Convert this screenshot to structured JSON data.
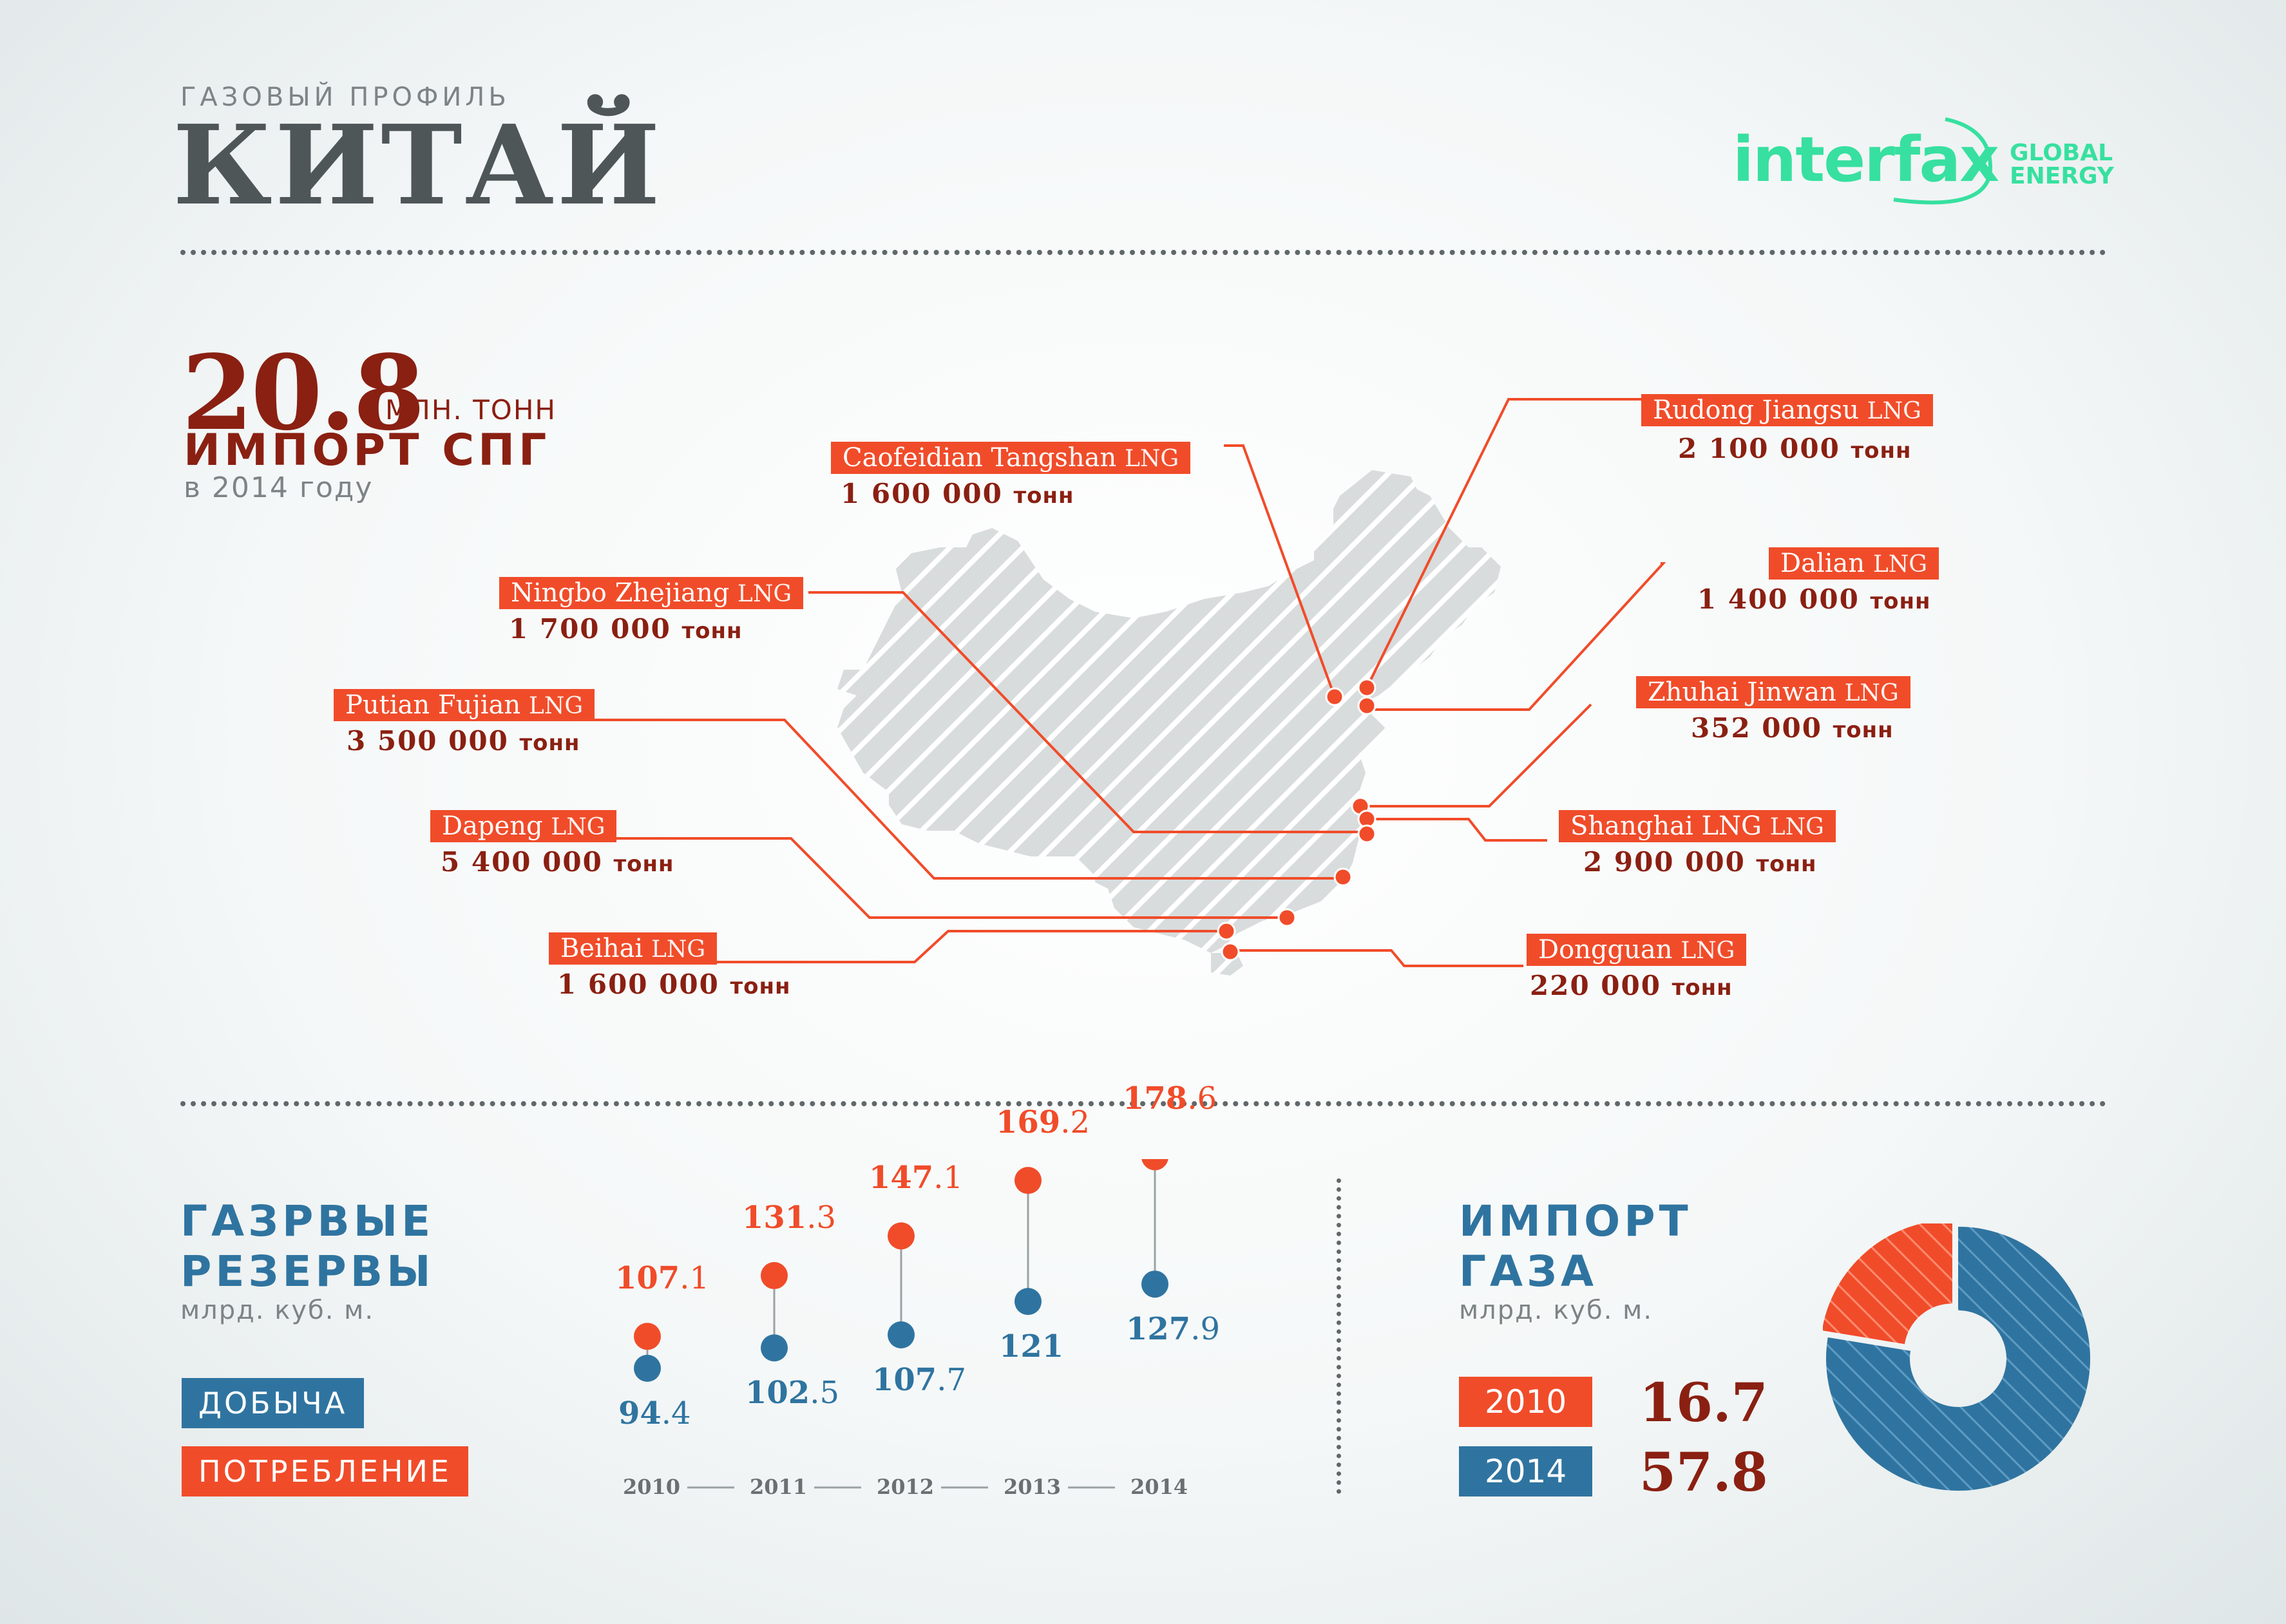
{
  "header": {
    "subtitle": "ГАЗОВЫЙ ПРОФИЛЬ",
    "title": "КИТАЙ",
    "logo_main": "interfax",
    "logo_global": "GLOBAL",
    "logo_energy": "ENERGY"
  },
  "colors": {
    "accent_red": "#f04c2a",
    "accent_dark_red": "#8a2012",
    "accent_blue": "#2f74a0",
    "logo_green": "#37e0a0",
    "map_fill": "#d8dcdd"
  },
  "lng_import": {
    "value": "20.8",
    "unit": "МЛН. ТОНН",
    "title": "ИМПОРТ СПГ",
    "year_text": "в 2014 году"
  },
  "terminals": [
    {
      "name": "Caofeidian Tangshan",
      "suffix": "LNG",
      "value": "1 600 000",
      "unit": "тонн"
    },
    {
      "name": "Rudong Jiangsu",
      "suffix": "LNG",
      "value": "2 100 000",
      "unit": "тонн"
    },
    {
      "name": "Ningbo Zhejiang",
      "suffix": "LNG",
      "value": "1 700 000",
      "unit": "тонн"
    },
    {
      "name": "Dalian",
      "suffix": "LNG",
      "value": "1 400 000",
      "unit": "тонн"
    },
    {
      "name": "Putian Fujian",
      "suffix": "LNG",
      "value": "3 500 000",
      "unit": "тонн"
    },
    {
      "name": "Zhuhai Jinwan",
      "suffix": "LNG",
      "value": "352 000",
      "unit": "тонн"
    },
    {
      "name": "Dapeng",
      "suffix": "LNG",
      "value": "5 400 000",
      "unit": "тонн"
    },
    {
      "name": "Shanghai LNG",
      "suffix": "LNG",
      "value": "2 900 000",
      "unit": "тонн"
    },
    {
      "name": "Beihai",
      "suffix": "LNG",
      "value": "1 600 000",
      "unit": "тонн"
    },
    {
      "name": "Dongguan",
      "suffix": "LNG",
      "value": "220 000",
      "unit": "тонн"
    }
  ],
  "reserves": {
    "title_line1": "ГАЗРВЫЕ",
    "title_line2": "РЕЗЕРВЫ",
    "unit": "млрд. куб. м.",
    "legend_production": "ДОБЫЧА",
    "legend_consumption": "ПОТРЕБЛЕНИЕ"
  },
  "gas_import": {
    "title_line1": "ИМПОРТ",
    "title_line2": "ГАЗА",
    "unit": "млрд. куб. м.",
    "rows": [
      {
        "year": "2010",
        "value": "16.7"
      },
      {
        "year": "2014",
        "value": "57.8"
      }
    ]
  },
  "chart_data": [
    {
      "type": "scatter",
      "title": "ГАЗРВЫЕ РЕЗЕРВЫ",
      "ylabel": "млрд. куб. м.",
      "categories": [
        "2010",
        "2011",
        "2012",
        "2013",
        "2014"
      ],
      "series": [
        {
          "name": "ПОТРЕБЛЕНИЕ",
          "color": "#f04c2a",
          "values": [
            107.1,
            131.3,
            147.1,
            169.2,
            178.6
          ],
          "labels": [
            [
              "107",
              ".1"
            ],
            [
              "131",
              ".3"
            ],
            [
              "147",
              ".1"
            ],
            [
              "169",
              ".2"
            ],
            [
              "178",
              ".6"
            ]
          ]
        },
        {
          "name": "ДОБЫЧА",
          "color": "#2f74a0",
          "values": [
            94.4,
            102.5,
            107.7,
            121,
            127.9
          ],
          "labels": [
            [
              "94",
              ".4"
            ],
            [
              "102",
              ".5"
            ],
            [
              "107",
              ".7"
            ],
            [
              "121",
              ""
            ],
            [
              "127",
              ".9"
            ]
          ]
        }
      ]
    },
    {
      "type": "pie",
      "title": "ИМПОРТ ГАЗА",
      "ylabel": "млрд. куб. м.",
      "categories": [
        "2010",
        "2014"
      ],
      "values": [
        16.7,
        57.8
      ],
      "colors": [
        "#f04c2a",
        "#2f74a0"
      ],
      "donut": true
    }
  ]
}
